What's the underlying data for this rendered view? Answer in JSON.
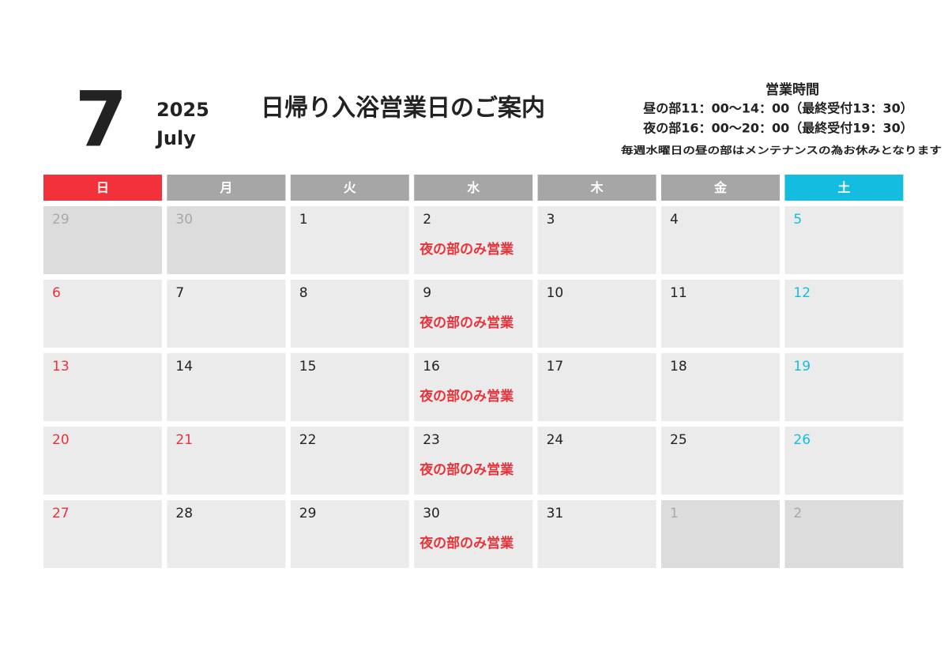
{
  "header": {
    "month": "7",
    "year": "2025",
    "month_name": "July",
    "title": "日帰り入浴営業日のご案内"
  },
  "hours": {
    "heading": "営業時間",
    "lines": [
      "昼の部11：00〜14：00（最終受付13：30）",
      "夜の部16：00〜20：00（最終受付19：30）"
    ],
    "note": "毎週水曜日の昼の部はメンテナンスの為お休みとなります"
  },
  "calendar": {
    "weekdays": [
      {
        "label": "日",
        "color": "#f2313a"
      },
      {
        "label": "月",
        "color": "#a6a6a6"
      },
      {
        "label": "火",
        "color": "#a6a6a6"
      },
      {
        "label": "水",
        "color": "#a6a6a6"
      },
      {
        "label": "木",
        "color": "#a6a6a6"
      },
      {
        "label": "金",
        "color": "#a6a6a6"
      },
      {
        "label": "土",
        "color": "#14bde0"
      }
    ],
    "weeks": [
      [
        {
          "day": 29,
          "muted": true
        },
        {
          "day": 30,
          "muted": true
        },
        {
          "day": 1
        },
        {
          "day": 2,
          "note": "夜の部のみ営業"
        },
        {
          "day": 3
        },
        {
          "day": 4
        },
        {
          "day": 5,
          "color": "#14bde0"
        }
      ],
      [
        {
          "day": 6,
          "color": "#e8333a"
        },
        {
          "day": 7
        },
        {
          "day": 8
        },
        {
          "day": 9,
          "note": "夜の部のみ営業"
        },
        {
          "day": 10
        },
        {
          "day": 11
        },
        {
          "day": 12,
          "color": "#14bde0"
        }
      ],
      [
        {
          "day": 13,
          "color": "#e8333a"
        },
        {
          "day": 14
        },
        {
          "day": 15
        },
        {
          "day": 16,
          "note": "夜の部のみ営業"
        },
        {
          "day": 17
        },
        {
          "day": 18
        },
        {
          "day": 19,
          "color": "#14bde0"
        }
      ],
      [
        {
          "day": 20,
          "color": "#e8333a"
        },
        {
          "day": 21,
          "color": "#e8333a"
        },
        {
          "day": 22
        },
        {
          "day": 23,
          "note": "夜の部のみ営業"
        },
        {
          "day": 24
        },
        {
          "day": 25
        },
        {
          "day": 26,
          "color": "#14bde0"
        }
      ],
      [
        {
          "day": 27,
          "color": "#e8333a"
        },
        {
          "day": 28
        },
        {
          "day": 29
        },
        {
          "day": 30,
          "note": "夜の部のみ営業"
        },
        {
          "day": 31
        },
        {
          "day": 1,
          "muted": true
        },
        {
          "day": 2,
          "muted": true
        }
      ]
    ]
  }
}
